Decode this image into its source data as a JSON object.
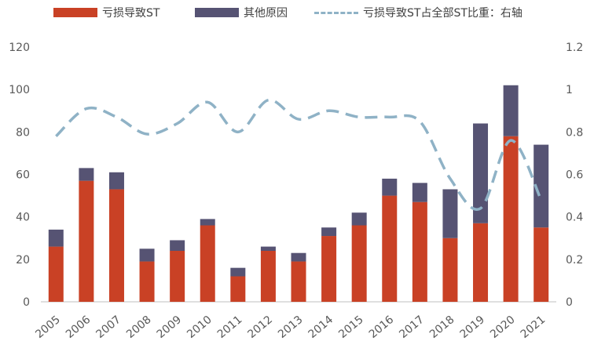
{
  "legend": {
    "loss": "亏损导致ST",
    "other": "其他原因",
    "ratio": "亏损导致ST占全部ST比重：右轴"
  },
  "colors": {
    "loss": "#c94125",
    "other": "#565373",
    "ratio": "#8fb2c6",
    "axis": "#595959"
  },
  "chart_data": {
    "type": "bar",
    "stacked": true,
    "categories": [
      "2005",
      "2006",
      "2007",
      "2008",
      "2009",
      "2010",
      "2011",
      "2012",
      "2013",
      "2014",
      "2015",
      "2016",
      "2017",
      "2018",
      "2019",
      "2020",
      "2021"
    ],
    "series": [
      {
        "name": "亏损导致ST",
        "type": "bar",
        "axis": "left",
        "values": [
          26,
          57,
          53,
          19,
          24,
          36,
          12,
          24,
          19,
          31,
          36,
          50,
          47,
          30,
          37,
          78,
          35
        ]
      },
      {
        "name": "其他原因",
        "type": "bar",
        "axis": "left",
        "values": [
          8,
          6,
          8,
          6,
          5,
          3,
          4,
          2,
          4,
          4,
          6,
          8,
          9,
          23,
          47,
          24,
          39
        ]
      },
      {
        "name": "亏损导致ST占全部ST比重：右轴",
        "type": "line",
        "style": "dashed",
        "axis": "right",
        "values": [
          0.78,
          0.91,
          0.87,
          0.79,
          0.84,
          0.94,
          0.8,
          0.95,
          0.86,
          0.9,
          0.87,
          0.87,
          0.85,
          0.58,
          0.44,
          0.76,
          0.48
        ]
      }
    ],
    "y_left": {
      "min": 0,
      "max": 120,
      "ticks": [
        "0",
        "20",
        "40",
        "60",
        "80",
        "100",
        "120"
      ]
    },
    "y_right": {
      "min": 0,
      "max": 1.2,
      "ticks": [
        "0",
        "0.2",
        "0.4",
        "0.6",
        "0.8",
        "1",
        "1.2"
      ]
    },
    "grid": false,
    "legend_position": "top"
  }
}
